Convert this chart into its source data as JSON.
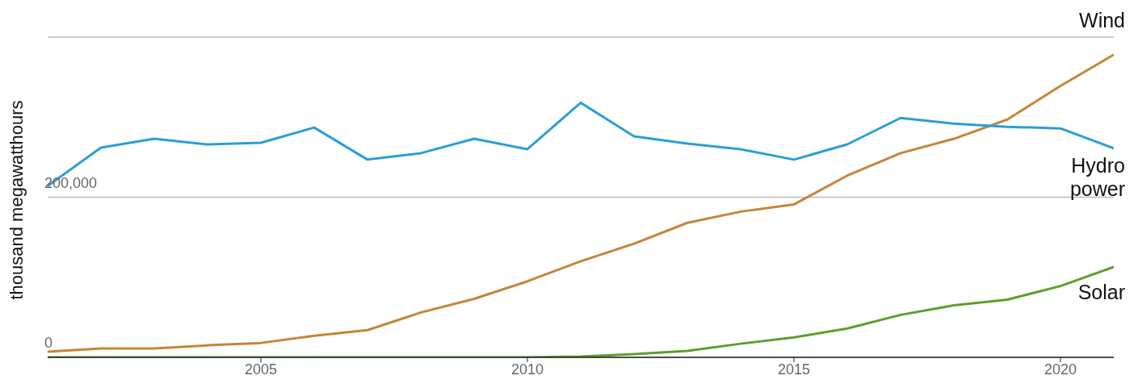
{
  "chart_data": {
    "type": "line",
    "ylabel": "thousand megawatthours",
    "x": [
      2001,
      2002,
      2003,
      2004,
      2005,
      2006,
      2007,
      2008,
      2009,
      2010,
      2011,
      2012,
      2013,
      2014,
      2015,
      2016,
      2017,
      2018,
      2019,
      2020,
      2021
    ],
    "series": [
      {
        "name": "Wind",
        "color": "#c8843a",
        "values": [
          7000,
          11000,
          11000,
          15000,
          18000,
          27000,
          34000,
          56000,
          73000,
          95000,
          120000,
          142000,
          168000,
          182000,
          191000,
          227000,
          255000,
          273000,
          297000,
          339000,
          378000
        ]
      },
      {
        "name": "Hydro power",
        "color": "#2a9fd6",
        "values": [
          214000,
          262000,
          273000,
          266000,
          268000,
          287000,
          247000,
          255000,
          273000,
          260000,
          318000,
          276000,
          267000,
          260000,
          247000,
          266000,
          299000,
          292000,
          288000,
          286000,
          261000
        ]
      },
      {
        "name": "Solar",
        "color": "#5aa02c",
        "values": [
          0,
          0,
          0,
          0,
          0,
          0,
          0,
          0,
          0,
          0,
          1000,
          4000,
          8000,
          17000,
          25000,
          36000,
          53000,
          65000,
          72000,
          89000,
          113000
        ]
      }
    ],
    "xlim": [
      2001,
      2021
    ],
    "xticks": [
      2005,
      2010,
      2015,
      2020
    ],
    "ylim": [
      0,
      400000
    ],
    "yticks": [
      0,
      {
        "value": 200000,
        "label": "200,000"
      },
      {
        "value": 400000,
        "label": null
      }
    ],
    "grid": "y",
    "marker": "none",
    "line_style": "solid"
  }
}
